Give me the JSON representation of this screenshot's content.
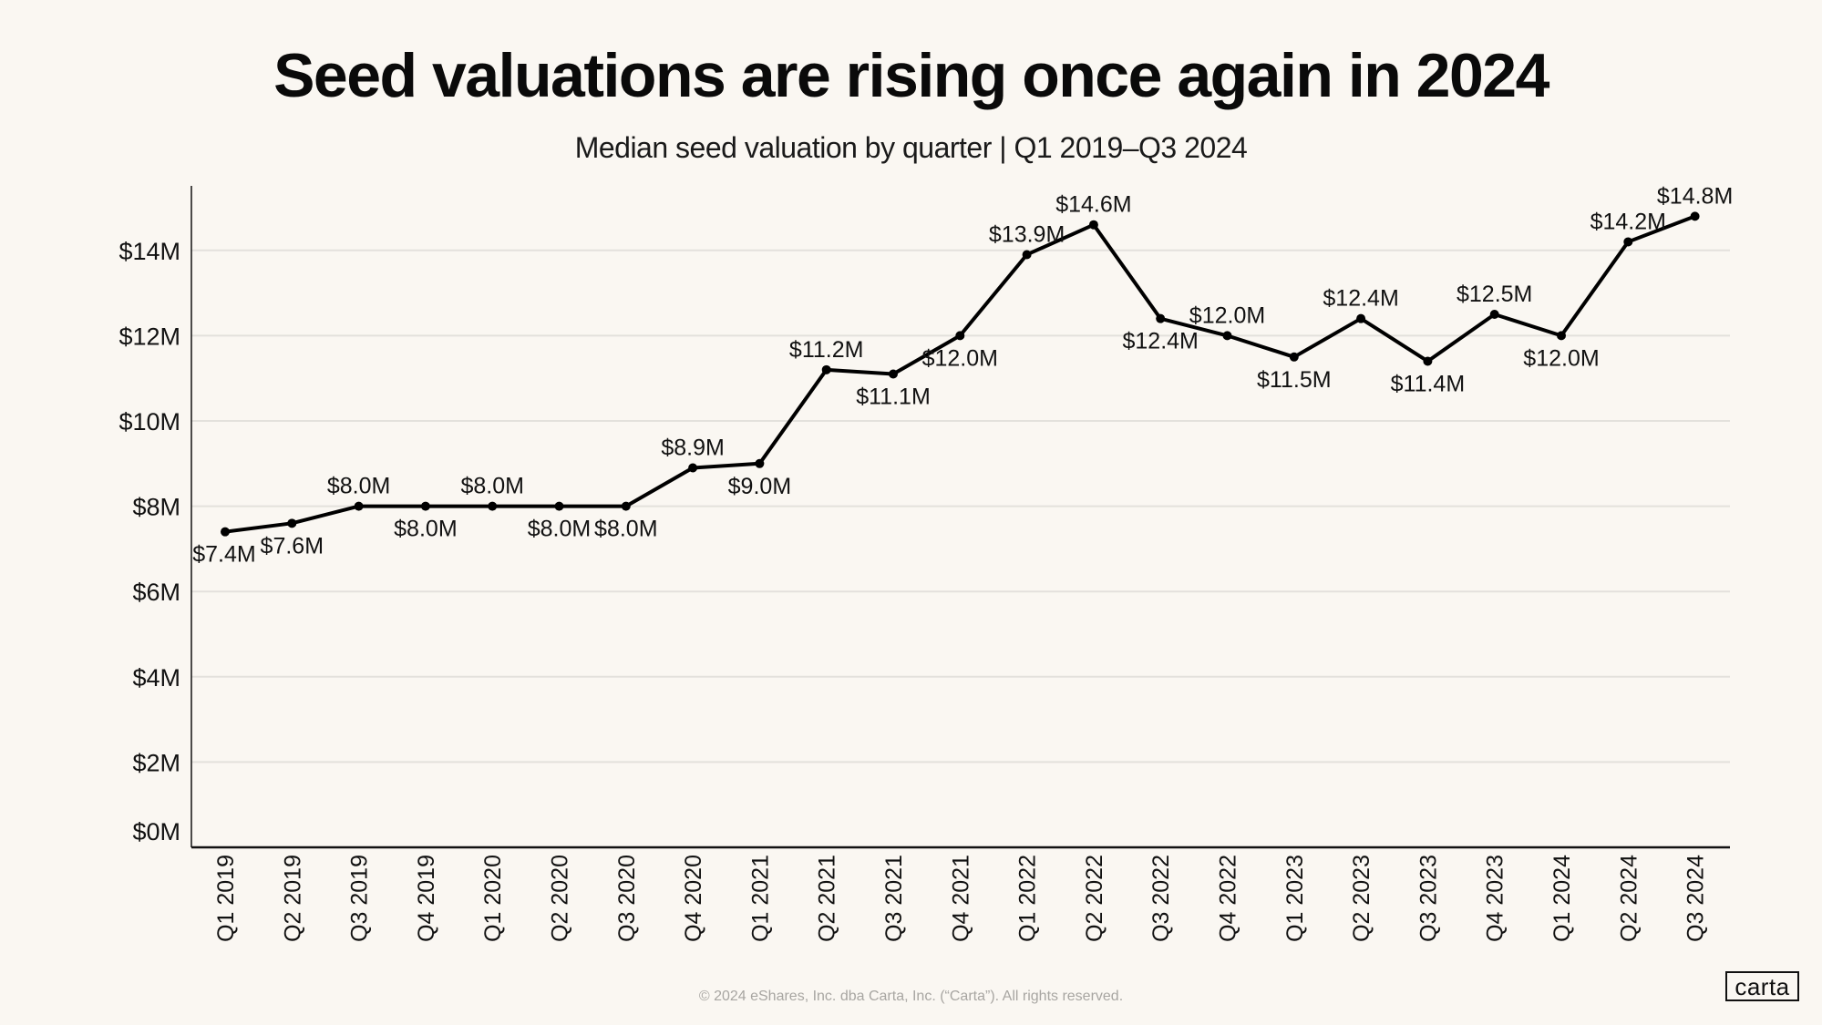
{
  "header": {
    "title": "Seed valuations are rising once again in 2024",
    "subtitle": "Median seed valuation by quarter | Q1 2019–Q3 2024"
  },
  "footer": {
    "copyright": "© 2024 eShares, Inc. dba Carta, Inc. (“Carta”). All rights reserved.",
    "logo": "carta"
  },
  "colors": {
    "background": "#faf7f2",
    "line": "#000000",
    "grid": "#e3e1dc",
    "axis": "#111111",
    "text": "#111111"
  },
  "chart_data": {
    "type": "line",
    "title": "Seed valuations are rising once again in 2024",
    "subtitle": "Median seed valuation by quarter | Q1 2019–Q3 2024",
    "xlabel": "",
    "ylabel": "",
    "ylim": [
      0,
      15.5
    ],
    "yticks": [
      0,
      2,
      4,
      6,
      8,
      10,
      12,
      14
    ],
    "ytick_labels": [
      "$0M",
      "$2M",
      "$4M",
      "$6M",
      "$8M",
      "$10M",
      "$12M",
      "$14M"
    ],
    "grid": true,
    "legend": "none",
    "categories": [
      "Q1 2019",
      "Q2 2019",
      "Q3 2019",
      "Q4 2019",
      "Q1 2020",
      "Q2 2020",
      "Q3 2020",
      "Q4 2020",
      "Q1 2021",
      "Q2 2021",
      "Q3 2021",
      "Q4 2021",
      "Q1 2022",
      "Q2 2022",
      "Q3 2022",
      "Q4 2022",
      "Q1 2023",
      "Q2 2023",
      "Q3 2023",
      "Q4 2023",
      "Q1 2024",
      "Q2 2024",
      "Q3 2024"
    ],
    "series": [
      {
        "name": "Median seed valuation ($M)",
        "values": [
          7.4,
          7.6,
          8.0,
          8.0,
          8.0,
          8.0,
          8.0,
          8.9,
          9.0,
          11.2,
          11.1,
          12.0,
          13.9,
          14.6,
          12.4,
          12.0,
          11.5,
          12.4,
          11.4,
          12.5,
          12.0,
          14.2,
          14.8
        ],
        "data_labels": [
          "$7.4M",
          "$7.6M",
          "$8.0M",
          "$8.0M",
          "$8.0M",
          "$8.0M",
          "$8.0M",
          "$8.9M",
          "$9.0M",
          "$11.2M",
          "$11.1M",
          "$12.0M",
          "$13.9M",
          "$14.6M",
          "$12.4M",
          "$12.0M",
          "$11.5M",
          "$12.4M",
          "$11.4M",
          "$12.5M",
          "$12.0M",
          "$14.2M",
          "$14.8M"
        ],
        "label_positions": [
          "below",
          "below",
          "above",
          "below",
          "above",
          "below",
          "below",
          "above",
          "below",
          "above",
          "below",
          "below",
          "above",
          "above",
          "below",
          "above",
          "below",
          "above",
          "below",
          "above",
          "below",
          "above",
          "above"
        ]
      }
    ]
  }
}
